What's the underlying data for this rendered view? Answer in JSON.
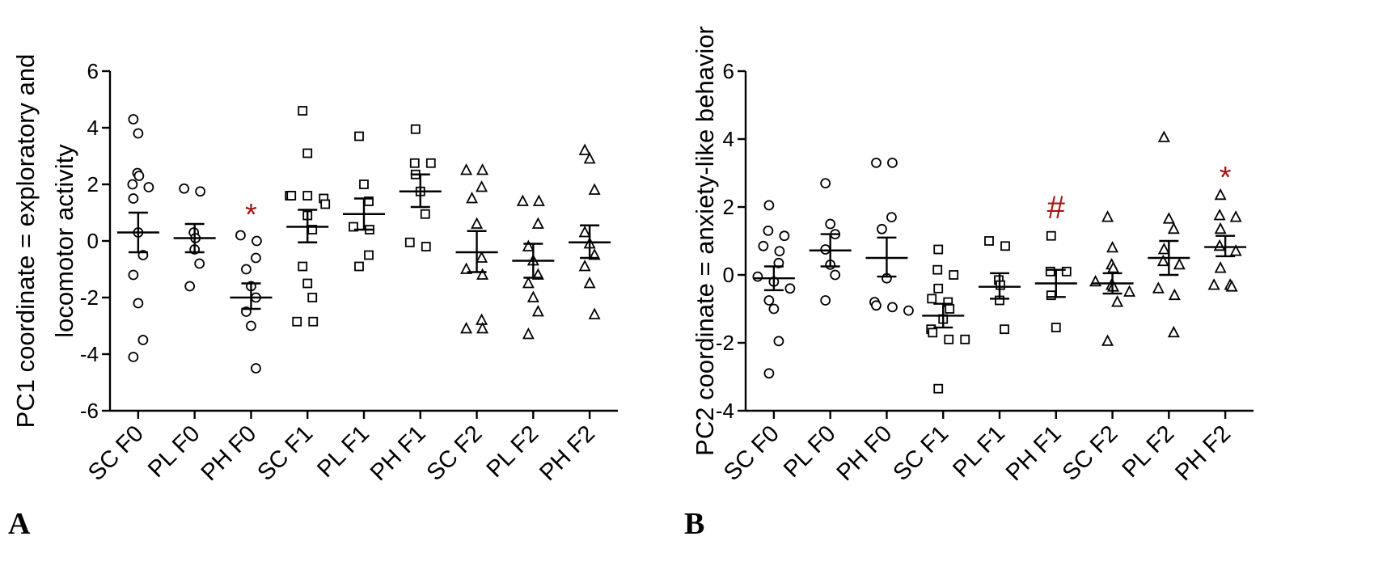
{
  "chart_data": [
    {
      "type": "scatter",
      "panel_label": "A",
      "ylabel": "PC1 coordinate = exploratory and locomotor activity",
      "ylabel_lines": [
        "PC1 coordinate = exploratory and",
        "locomotor activity"
      ],
      "ylim": [
        -6,
        6
      ],
      "yticks": [
        -6,
        -4,
        -2,
        0,
        2,
        4,
        6
      ],
      "ytick_labels": [
        "-6",
        "-4",
        "-2",
        "0",
        "2",
        "4",
        "6"
      ],
      "categories": [
        "SC F0",
        "PL F0",
        "PH F0",
        "SC F1",
        "PL F1",
        "PH F1",
        "SC F2",
        "PL F2",
        "PH F2"
      ],
      "markers": [
        "circle",
        "circle",
        "circle",
        "square",
        "square",
        "square",
        "triangle",
        "triangle",
        "triangle"
      ],
      "grid": false,
      "groups": [
        {
          "name": "SC F0",
          "points": [
            4.3,
            3.8,
            2.4,
            2.3,
            2.0,
            1.9,
            1.5,
            0.3,
            -0.5,
            -1.2,
            -2.2,
            -3.5,
            -4.1
          ],
          "mean": 0.3,
          "sem_low": -0.4,
          "sem_high": 1.0
        },
        {
          "name": "PL F0",
          "points": [
            1.85,
            1.75,
            0.3,
            0.1,
            -0.3,
            -0.8,
            -1.6
          ],
          "mean": 0.1,
          "sem_low": -0.4,
          "sem_high": 0.6
        },
        {
          "name": "PH F0",
          "points": [
            0.2,
            0.0,
            -0.6,
            -1.0,
            -1.6,
            -2.0,
            -2.5,
            -3.0,
            -4.5
          ],
          "mean": -2.0,
          "sem_low": -2.4,
          "sem_high": -1.5
        },
        {
          "name": "SC F1",
          "points": [
            4.6,
            3.1,
            1.6,
            1.6,
            1.6,
            1.5,
            1.3,
            0.9,
            0.4,
            -0.9,
            -1.5,
            -2.0,
            -2.85,
            -2.85
          ],
          "mean": 0.5,
          "sem_low": -0.05,
          "sem_high": 1.1
        },
        {
          "name": "PL F1",
          "points": [
            3.7,
            2.0,
            1.4,
            0.5,
            0.4,
            -0.5,
            -0.9
          ],
          "mean": 0.95,
          "sem_low": 0.4,
          "sem_high": 1.5
        },
        {
          "name": "PH F1",
          "points": [
            3.95,
            2.75,
            2.75,
            2.35,
            1.75,
            0.95,
            -0.05,
            -0.2
          ],
          "mean": 1.75,
          "sem_low": 1.2,
          "sem_high": 2.35
        },
        {
          "name": "SC F2",
          "points": [
            2.5,
            2.5,
            1.9,
            1.5,
            0.6,
            -0.6,
            -1.0,
            -1.2,
            -2.8,
            -3.1,
            -3.1
          ],
          "mean": -0.4,
          "sem_low": -1.1,
          "sem_high": 0.35
        },
        {
          "name": "PL F2",
          "points": [
            1.4,
            1.4,
            0.6,
            -0.2,
            -0.7,
            -1.2,
            -1.5,
            -2.0,
            -2.5,
            -3.3
          ],
          "mean": -0.7,
          "sem_low": -1.3,
          "sem_high": -0.1
        },
        {
          "name": "PH F2",
          "points": [
            3.2,
            2.9,
            1.8,
            0.3,
            -0.1,
            -0.5,
            -0.9,
            -1.5,
            -2.6
          ],
          "mean": -0.05,
          "sem_low": -0.6,
          "sem_high": 0.55
        }
      ],
      "annotations": [
        {
          "category": "PH F0",
          "text": "*",
          "y": 1.2
        }
      ]
    },
    {
      "type": "scatter",
      "panel_label": "B",
      "ylabel": "PC2 coordinate = anxiety-like behavior",
      "ylabel_lines": [
        "PC2 coordinate = anxiety-like behavior"
      ],
      "ylim": [
        -4,
        6
      ],
      "yticks": [
        -4,
        -2,
        0,
        2,
        4,
        6
      ],
      "ytick_labels": [
        "-4",
        "-2",
        "0",
        "2",
        "4",
        "6"
      ],
      "categories": [
        "SC F0",
        "PL F0",
        "PH F0",
        "SC F1",
        "PL F1",
        "PH F1",
        "SC F2",
        "PL F2",
        "PH F2"
      ],
      "markers": [
        "circle",
        "circle",
        "circle",
        "square",
        "square",
        "square",
        "triangle",
        "triangle",
        "triangle"
      ],
      "grid": false,
      "groups": [
        {
          "name": "SC F0",
          "points": [
            2.05,
            1.3,
            1.15,
            0.85,
            0.7,
            0.35,
            -0.05,
            -0.2,
            -0.4,
            -0.75,
            -1.0,
            -1.95,
            -2.9
          ],
          "mean": -0.1,
          "sem_low": -0.45,
          "sem_high": 0.25
        },
        {
          "name": "PL F0",
          "points": [
            2.7,
            1.5,
            1.2,
            0.75,
            0.3,
            0.0,
            -0.75
          ],
          "mean": 0.72,
          "sem_low": 0.25,
          "sem_high": 1.2
        },
        {
          "name": "PH F0",
          "points": [
            3.3,
            3.3,
            1.7,
            1.35,
            -0.1,
            -0.8,
            -0.9,
            -0.95,
            -1.05
          ],
          "mean": 0.5,
          "sem_low": -0.05,
          "sem_high": 1.1
        },
        {
          "name": "SC F1",
          "points": [
            0.75,
            0.15,
            0.0,
            -0.4,
            -0.7,
            -0.8,
            -1.0,
            -1.3,
            -1.6,
            -1.7,
            -1.9,
            -1.9,
            -3.35
          ],
          "mean": -1.2,
          "sem_low": -1.55,
          "sem_high": -0.85
        },
        {
          "name": "PL F1",
          "points": [
            1.0,
            0.85,
            -0.15,
            -0.3,
            -0.75,
            -1.6
          ],
          "mean": -0.35,
          "sem_low": -0.7,
          "sem_high": 0.05
        },
        {
          "name": "PH F1",
          "points": [
            1.15,
            0.1,
            0.1,
            -0.6,
            -1.55
          ],
          "mean": -0.25,
          "sem_low": -0.65,
          "sem_high": 0.15
        },
        {
          "name": "SC F2",
          "points": [
            1.7,
            0.8,
            0.3,
            0.2,
            -0.2,
            -0.3,
            -0.35,
            -0.5,
            -0.8,
            -1.95
          ],
          "mean": -0.25,
          "sem_low": -0.55,
          "sem_high": 0.05
        },
        {
          "name": "PL F2",
          "points": [
            4.05,
            1.65,
            1.35,
            0.75,
            0.4,
            0.3,
            -0.4,
            -0.6,
            -1.7
          ],
          "mean": 0.5,
          "sem_low": 0.0,
          "sem_high": 1.0
        },
        {
          "name": "PH F2",
          "points": [
            2.35,
            1.75,
            1.7,
            1.35,
            0.85,
            0.7,
            0.2,
            -0.3,
            -0.3,
            -0.35
          ],
          "mean": 0.82,
          "sem_low": 0.55,
          "sem_high": 1.15
        }
      ],
      "annotations": [
        {
          "category": "PH F1",
          "text": "#",
          "y": 2.0
        },
        {
          "category": "PH F2",
          "text": "*",
          "y": 3.1
        }
      ]
    }
  ],
  "colors": {
    "marker": "#000000",
    "annotation": "#a31515",
    "background": "#ffffff"
  }
}
